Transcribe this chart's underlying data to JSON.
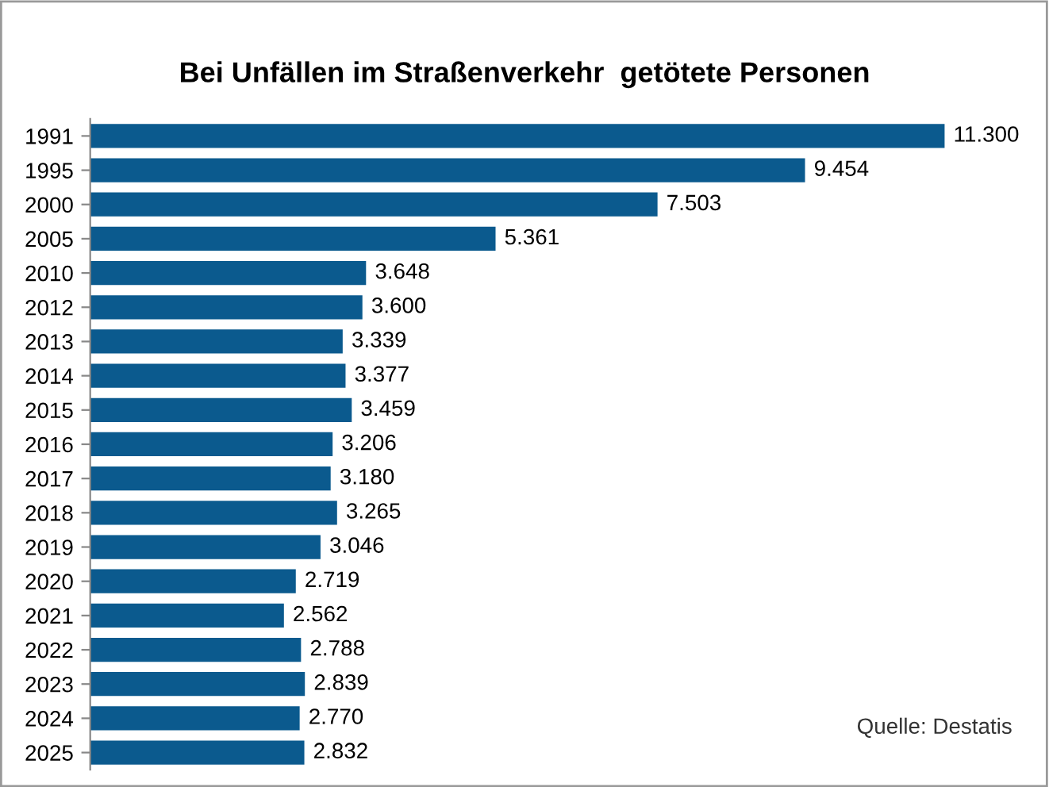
{
  "chart_data": {
    "type": "bar",
    "orientation": "horizontal",
    "title": "Bei Unfällen im Straßenverkehr  getötete Personen",
    "categories": [
      "1991",
      "1995",
      "2000",
      "2005",
      "2010",
      "2012",
      "2013",
      "2014",
      "2015",
      "2016",
      "2017",
      "2018",
      "2019",
      "2020",
      "2021",
      "2022",
      "2023",
      "2024",
      "2025"
    ],
    "values": [
      11300,
      9454,
      7503,
      5361,
      3648,
      3600,
      3339,
      3377,
      3459,
      3206,
      3180,
      3265,
      3046,
      2719,
      2562,
      2788,
      2839,
      2770,
      2832
    ],
    "value_labels": [
      "11.300",
      "9.454",
      "7.503",
      "5.361",
      "3.648",
      "3.600",
      "3.339",
      "3.377",
      "3.459",
      "3.206",
      "3.180",
      "3.265",
      "3.046",
      "2.719",
      "2.562",
      "2.788",
      "2.839",
      "2.770",
      "2.832"
    ],
    "color": "#0b5a8e",
    "annotations": [
      "Quelle: Destatis"
    ],
    "grid": false,
    "legend": false
  }
}
